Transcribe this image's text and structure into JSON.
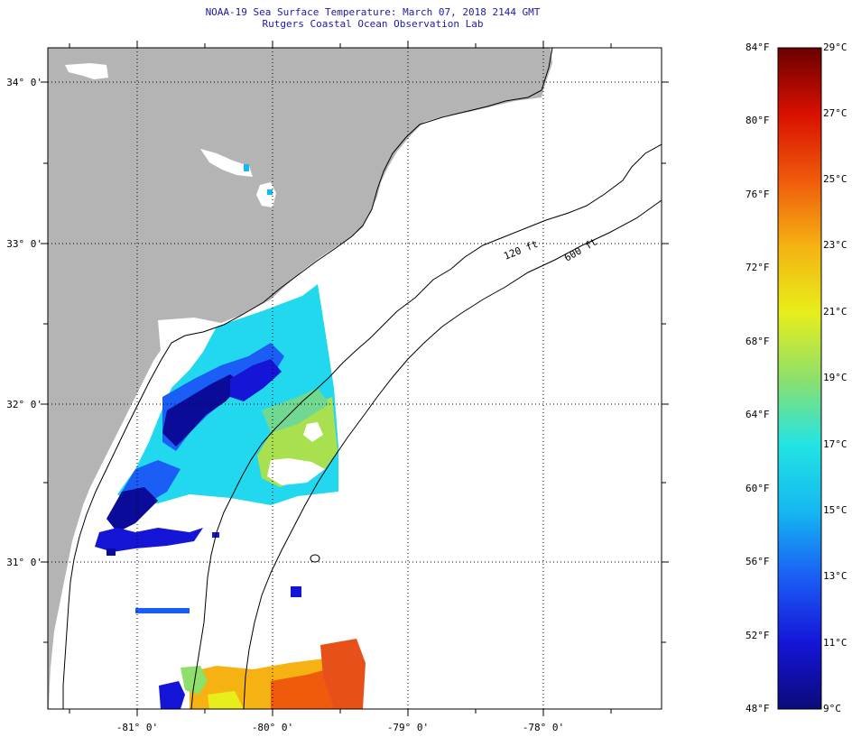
{
  "title": {
    "line1": "NOAA-19 Sea Surface Temperature:  March 07, 2018 2144 GMT",
    "line2": "Rutgers Coastal Ocean Observation Lab"
  },
  "map": {
    "lat_labels": [
      "34° 0'",
      "33° 0'",
      "32° 0'",
      "31° 0'"
    ],
    "lon_labels": [
      "-81° 0'",
      "-80° 0'",
      "-79° 0'",
      "-78° 0'"
    ],
    "contours": [
      {
        "label": "120 ft"
      },
      {
        "label": "600 ft"
      }
    ],
    "colors": {
      "land": "#b4b4b4",
      "ocean": "#ffffff",
      "clouds": "#ffffff"
    }
  },
  "colorbar": {
    "fahrenheit": [
      "84°F",
      "80°F",
      "76°F",
      "72°F",
      "68°F",
      "64°F",
      "60°F",
      "56°F",
      "52°F",
      "48°F"
    ],
    "celsius": [
      "29°C",
      "27°C",
      "25°C",
      "23°C",
      "21°C",
      "19°C",
      "17°C",
      "15°C",
      "13°C",
      "11°C",
      "9°C"
    ],
    "min_f": 48,
    "max_f": 84,
    "min_c": 9,
    "max_c": 29,
    "stops": [
      "#0b0b7a",
      "#1515d8",
      "#1a5ef5",
      "#15b8f0",
      "#22e4e4",
      "#8ee06a",
      "#e8ee1a",
      "#f5b212",
      "#f05a0c",
      "#d91000",
      "#6a0000"
    ]
  }
}
